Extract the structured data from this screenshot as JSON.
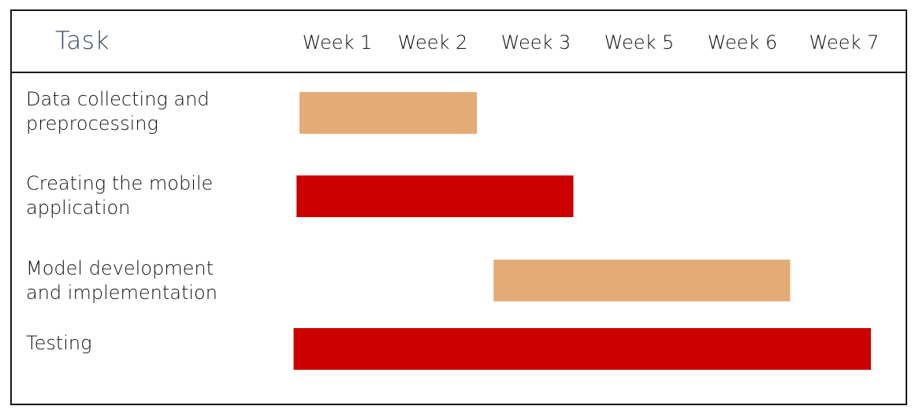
{
  "chart_data": {
    "type": "gantt",
    "header": {
      "task_label": "Task"
    },
    "columns": [
      "Week 1",
      "Week 2",
      "Week 3",
      "Week 5",
      "Week 6",
      "Week 7"
    ],
    "tasks": [
      {
        "label": "Data collecting and\npreprocessing",
        "start": 0.0,
        "end": 1.8,
        "color": "#E5AB76"
      },
      {
        "label": "Creating the mobile\napplication",
        "start": -0.03,
        "end": 2.78,
        "color": "#CC0000"
      },
      {
        "label": "Model development\nand implementation",
        "start": 1.97,
        "end": 4.98,
        "color": "#E5AB76"
      },
      {
        "label": "Testing",
        "start": -0.06,
        "end": 5.8,
        "color": "#CC0000"
      }
    ],
    "grid": false,
    "legend": "none"
  }
}
